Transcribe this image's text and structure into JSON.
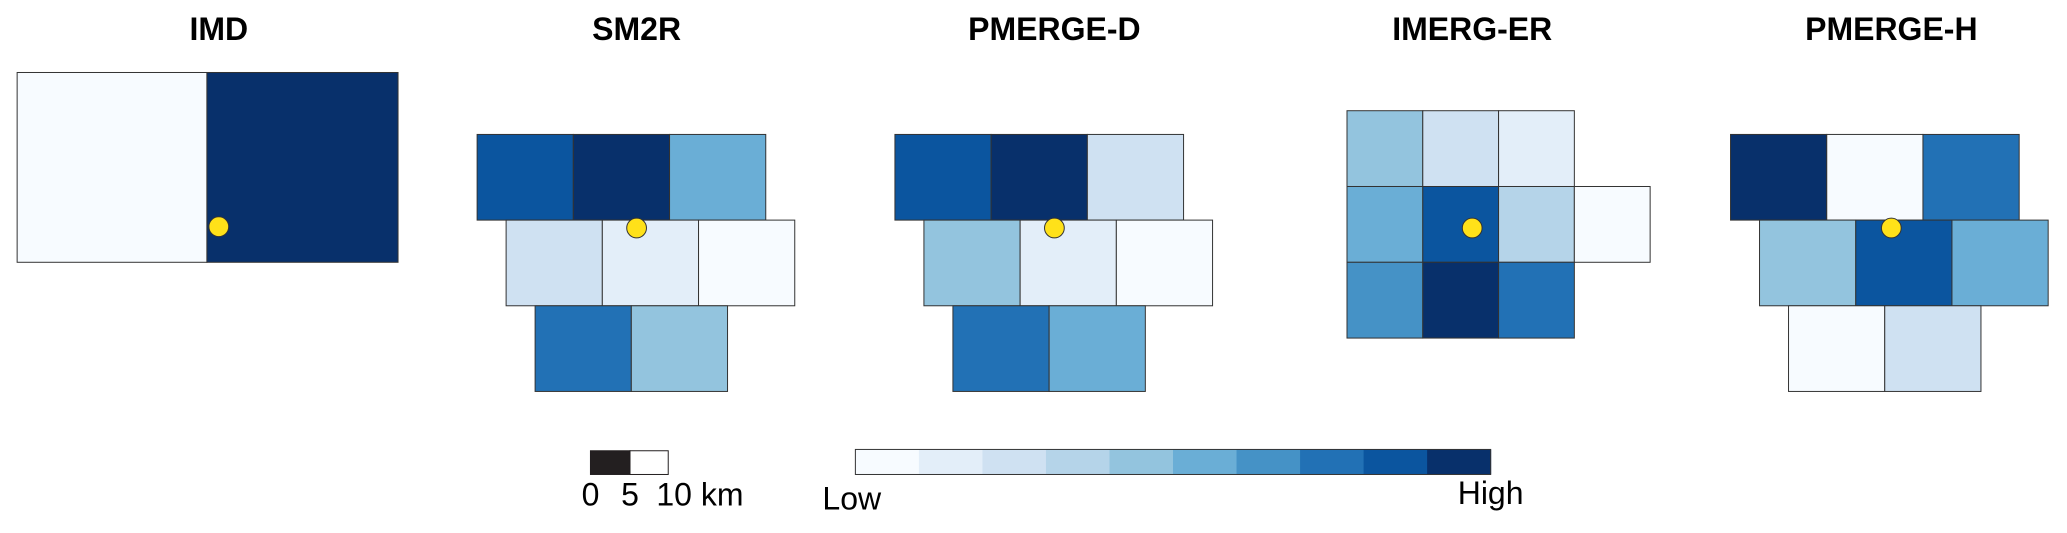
{
  "panels": [
    {
      "title": "IMD",
      "cells": [
        "#f7fbff",
        "#08306b"
      ]
    },
    {
      "title": "SM2R",
      "cells": [
        "#0b559f",
        "#08306b",
        "#6aaed6",
        "#cfe1f2",
        "#e3eef9",
        "#f7fbff",
        "#2271b5",
        "#93c4de"
      ]
    },
    {
      "title": "PMERGE-D",
      "cells": [
        "#0b559f",
        "#08306b",
        "#cfe1f2",
        "#93c4de",
        "#e3eef9",
        "#f7fbff",
        "#2271b5",
        "#6aaed6"
      ]
    },
    {
      "title": "IMERG-ER",
      "cells": [
        "#93c4de",
        "#cfe1f2",
        "#e3eef9",
        "#6aaed6",
        "#0b559f",
        "#b5d4e9",
        "#f7fbff",
        "#4592c6",
        "#08306b",
        "#2271b5"
      ]
    },
    {
      "title": "PMERGE-H",
      "cells": [
        "#08306b",
        "#f7fbff",
        "#2271b5",
        "#93c4de",
        "#0b559f",
        "#6aaed6",
        "#f7fbff",
        "#cfe1f2"
      ]
    }
  ],
  "station_color": "#ffe119",
  "scale_bar": {
    "labels": [
      "0",
      "5",
      "10 km"
    ]
  },
  "legend": {
    "low": "Low",
    "high": "High",
    "colors": [
      "#f7fbff",
      "#e3eef9",
      "#cfe1f2",
      "#b5d4e9",
      "#93c4de",
      "#6aaed6",
      "#4592c6",
      "#2271b5",
      "#0b559f",
      "#08306b"
    ]
  }
}
